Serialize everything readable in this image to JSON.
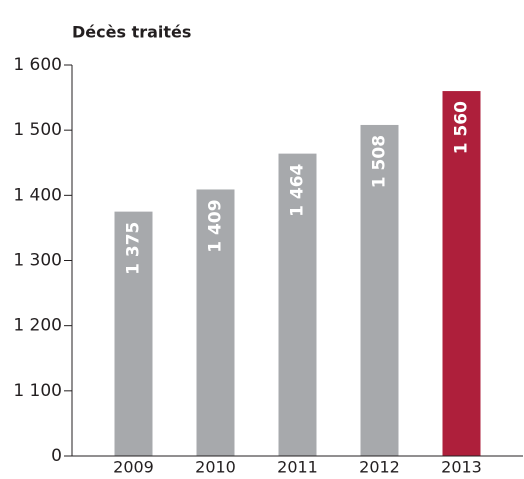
{
  "chart_data": {
    "type": "bar",
    "title": "Décès traités",
    "categories": [
      "2009",
      "2010",
      "2011",
      "2012",
      "2013"
    ],
    "values": [
      1375,
      1409,
      1464,
      1508,
      1560
    ],
    "value_labels": [
      "1 375",
      "1 409",
      "1 464",
      "1 508",
      "1 560"
    ],
    "colors": [
      "#a7a9ac",
      "#a7a9ac",
      "#a7a9ac",
      "#a7a9ac",
      "#ae1f3b"
    ],
    "ylim": [
      0,
      1600
    ],
    "axis_break": [
      0,
      1000
    ],
    "yticks": [
      0,
      {
        "value": 1100,
        "label": "1 100"
      },
      {
        "value": 1200,
        "label": "1 200"
      },
      {
        "value": 1300,
        "label": "1 300"
      },
      {
        "value": 1400,
        "label": "1 400"
      },
      {
        "value": 1500,
        "label": "1 500"
      },
      {
        "value": 1600,
        "label": "1 600"
      }
    ]
  }
}
